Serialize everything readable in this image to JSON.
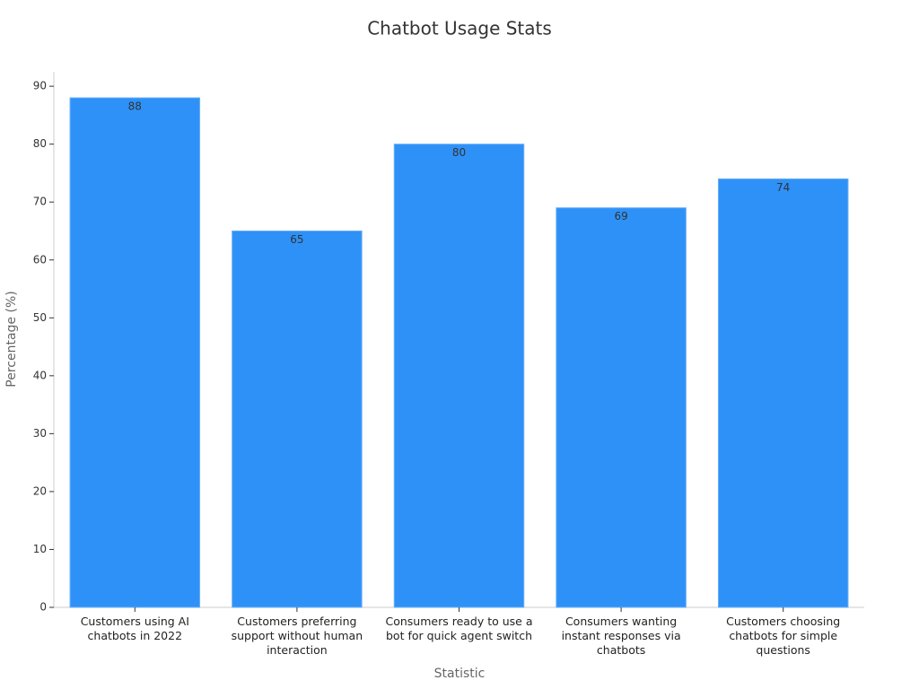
{
  "chart_data": {
    "type": "bar",
    "title": "Chatbot Usage Stats",
    "x_label": "Statistic",
    "y_label": "Percentage (%)",
    "categories": [
      "Customers using AI chatbots in 2022",
      "Customers preferring support without human interaction",
      "Consumers ready to use a bot for quick agent switch",
      "Consumers wanting instant responses via chatbots",
      "Customers choosing chatbots for simple questions"
    ],
    "values": [
      88,
      65,
      80,
      69,
      74
    ],
    "color": "#2e91f8",
    "ylim": [
      0,
      92.5
    ],
    "yticks": [
      0,
      10,
      20,
      30,
      40,
      50,
      60,
      70,
      80,
      90
    ],
    "grid": false
  }
}
